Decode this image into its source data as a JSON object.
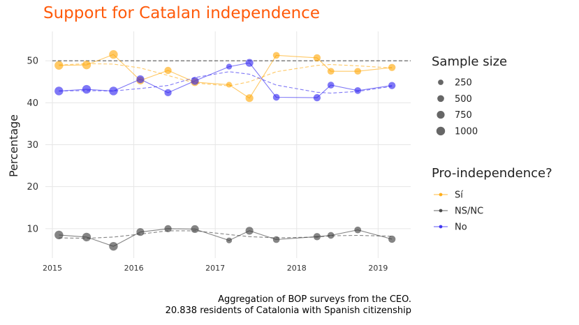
{
  "chart_data": {
    "type": "line",
    "title": "Support for Catalan independence",
    "xlabel": "",
    "ylabel": "Percentage",
    "xlim": [
      2015.0,
      2019.4
    ],
    "ylim": [
      3,
      57
    ],
    "x_ticks": [
      2015,
      2016,
      2017,
      2018,
      2019
    ],
    "y_ticks": [
      10,
      20,
      30,
      40,
      50
    ],
    "reference_line": 50,
    "grid": true,
    "caption": [
      "Aggregation of BOP surveys from the CEO.",
      "20.838 residents of Catalonia with Spanish citizenship"
    ],
    "legend_position": "right",
    "legend_size_title": "Sample size",
    "legend_size": [
      250,
      500,
      750,
      1000
    ],
    "legend_series_title": "Pro-independence?",
    "x": [
      2015.08,
      2015.42,
      2015.75,
      2016.08,
      2016.42,
      2016.75,
      2017.17,
      2017.42,
      2017.75,
      2018.25,
      2018.42,
      2018.75,
      2019.17
    ],
    "series": [
      {
        "name": "Sí",
        "color": "#ffa500",
        "values": [
          48.9,
          49.0,
          51.5,
          45.3,
          47.7,
          44.9,
          44.3,
          41.1,
          51.3,
          50.7,
          47.5,
          47.5,
          48.4
        ],
        "trend": [
          49.0,
          49.3,
          49.2,
          48.3,
          46.5,
          44.7,
          44.0,
          45.0,
          47.4,
          48.9,
          49.1,
          48.8,
          48.3
        ]
      },
      {
        "name": "NS/NC",
        "color": "#333333",
        "values": [
          8.5,
          8.0,
          5.8,
          9.2,
          10.0,
          9.9,
          7.2,
          9.5,
          7.4,
          8.1,
          8.4,
          9.7,
          7.5
        ],
        "trend": [
          7.8,
          7.7,
          8.0,
          8.7,
          9.5,
          9.5,
          8.6,
          8.1,
          7.8,
          8.0,
          8.3,
          8.4,
          8.2
        ]
      },
      {
        "name": "No",
        "color": "#2a1ef0",
        "values": [
          42.8,
          43.2,
          42.8,
          45.6,
          42.4,
          45.2,
          48.6,
          49.5,
          41.3,
          41.2,
          44.2,
          42.9,
          44.1
        ],
        "trend": [
          42.8,
          42.9,
          42.8,
          43.4,
          44.1,
          46.0,
          47.4,
          46.8,
          44.2,
          42.5,
          42.3,
          42.7,
          43.9
        ]
      }
    ],
    "sample_size": [
      1000,
      1000,
      1000,
      750,
      600,
      750,
      300,
      750,
      500,
      600,
      500,
      500,
      600
    ]
  }
}
